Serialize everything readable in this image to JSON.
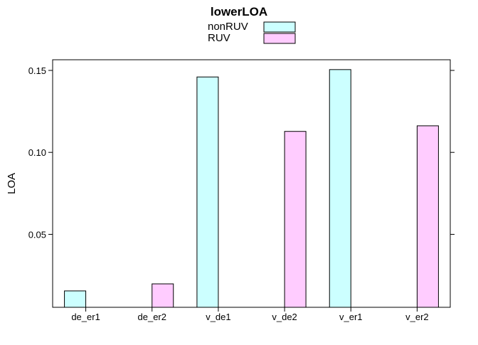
{
  "chart_data": {
    "type": "bar",
    "title": "lowerLOA",
    "ylabel": "LOA",
    "xlabel": "",
    "categories": [
      "de_er1",
      "de_er2",
      "v_de1",
      "v_de2",
      "v_er1",
      "v_er2"
    ],
    "series": [
      {
        "name": "nonRUV",
        "color": "#ccffff",
        "values": [
          0.0155,
          null,
          0.146,
          null,
          0.1505,
          null
        ]
      },
      {
        "name": "RUV",
        "color": "#ffccff",
        "values": [
          null,
          0.0198,
          null,
          0.1128,
          null,
          0.1162
        ]
      }
    ],
    "ylim": [
      0.0055,
      0.1565
    ],
    "yticks": [
      0.05,
      0.1,
      0.15
    ],
    "yticklabels": [
      "0.05",
      "0.10",
      "0.15"
    ],
    "grid": false,
    "legend_position": "top"
  }
}
